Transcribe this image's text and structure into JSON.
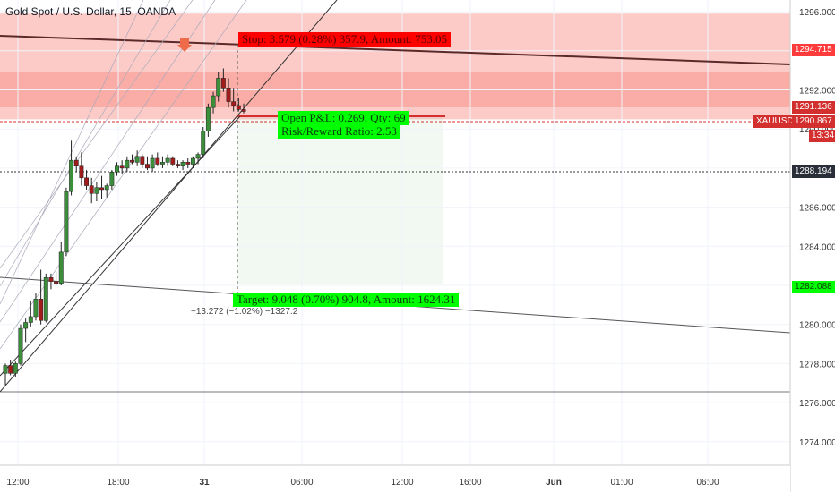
{
  "header": {
    "title": "Gold Spot / U.S. Dollar, 15, OANDA"
  },
  "colors": {
    "up": "#26a69a",
    "down": "#ef5350",
    "candle_up": "#3b8f3b",
    "candle_down": "#a21c1c",
    "stop_zone": "#f44336",
    "target_zone": "#4caf50",
    "target_label": "#00ff00",
    "stop_label": "#ff0000"
  },
  "y_axis": {
    "ticks": [
      "1296.000",
      "1294.000",
      "1292.000",
      "1290.000",
      "1288.000",
      "1286.000",
      "1284.000",
      "1282.000",
      "1280.000",
      "1278.000",
      "1276.000",
      "1274.000"
    ],
    "ylim": [
      1272.8,
      1296.6
    ]
  },
  "x_axis": {
    "ticks": [
      "12:00",
      "18:00",
      "31",
      "06:00",
      "12:00",
      "16:00",
      "Jun",
      "01:00",
      "06:00"
    ]
  },
  "price_tags": {
    "stop": "1294.715",
    "entry": "1291.136",
    "current_symbol": "XAUUSD",
    "current_price": "1290.867",
    "countdown": "13:34",
    "dotted_level": "1288.194",
    "target": "1282.088"
  },
  "position": {
    "stop_label": "Stop: 3.579 (0.28%) 357.9, Amount: 753.05",
    "open_pl_label": "Open P&L: 0.269, Qty: 69",
    "rr_label": "Risk/Reward Ratio: 2.53",
    "target_label": "Target: 9.048 (0.70%) 904.8, Amount: 1624.31",
    "measure_label": "−13.272 (−1.02%) −1327.2"
  },
  "chart_data": {
    "type": "candlestick",
    "symbol": "XAUUSD",
    "ohlc": [
      [
        1277.5,
        1278.0,
        1276.9,
        1277.9
      ],
      [
        1277.9,
        1278.2,
        1277.4,
        1277.5
      ],
      [
        1277.5,
        1278.1,
        1277.3,
        1278.0
      ],
      [
        1278.0,
        1280.0,
        1277.9,
        1279.8
      ],
      [
        1279.8,
        1280.3,
        1279.1,
        1280.1
      ],
      [
        1280.1,
        1281.2,
        1279.9,
        1280.4
      ],
      [
        1280.4,
        1281.6,
        1280.2,
        1281.3
      ],
      [
        1281.3,
        1282.8,
        1280.0,
        1280.2
      ],
      [
        1280.2,
        1282.6,
        1280.1,
        1282.4
      ],
      [
        1282.4,
        1282.6,
        1281.8,
        1282.2
      ],
      [
        1282.2,
        1282.7,
        1282.0,
        1282.1
      ],
      [
        1282.1,
        1284.2,
        1282.0,
        1283.7
      ],
      [
        1283.7,
        1287.0,
        1283.5,
        1286.8
      ],
      [
        1286.8,
        1289.4,
        1286.6,
        1288.4
      ],
      [
        1288.4,
        1288.6,
        1287.8,
        1288.1
      ],
      [
        1288.1,
        1288.8,
        1287.1,
        1287.5
      ],
      [
        1287.5,
        1287.9,
        1286.9,
        1287.1
      ],
      [
        1287.1,
        1287.5,
        1286.2,
        1286.7
      ],
      [
        1286.7,
        1287.3,
        1286.3,
        1287.0
      ],
      [
        1287.0,
        1287.6,
        1286.4,
        1286.9
      ],
      [
        1286.9,
        1287.2,
        1286.5,
        1287.1
      ],
      [
        1287.1,
        1287.9,
        1286.9,
        1287.8
      ],
      [
        1287.8,
        1288.3,
        1287.6,
        1288.1
      ],
      [
        1288.1,
        1288.4,
        1287.7,
        1288.0
      ],
      [
        1288.0,
        1288.6,
        1287.8,
        1288.4
      ],
      [
        1288.4,
        1288.7,
        1288.2,
        1288.3
      ],
      [
        1288.3,
        1288.9,
        1288.1,
        1288.6
      ],
      [
        1288.6,
        1288.7,
        1288.0,
        1288.2
      ],
      [
        1288.2,
        1288.6,
        1287.9,
        1288.0
      ],
      [
        1288.0,
        1288.7,
        1287.8,
        1288.5
      ],
      [
        1288.5,
        1288.8,
        1288.1,
        1288.2
      ],
      [
        1288.2,
        1288.6,
        1288.0,
        1288.3
      ],
      [
        1288.3,
        1288.7,
        1288.1,
        1288.5
      ],
      [
        1288.5,
        1288.6,
        1288.1,
        1288.2
      ],
      [
        1288.2,
        1288.4,
        1288.0,
        1288.1
      ],
      [
        1288.1,
        1288.4,
        1287.9,
        1288.3
      ],
      [
        1288.3,
        1288.5,
        1288.0,
        1288.2
      ],
      [
        1288.2,
        1288.6,
        1288.0,
        1288.5
      ],
      [
        1288.5,
        1288.8,
        1288.2,
        1288.7
      ],
      [
        1288.7,
        1290.1,
        1288.5,
        1289.9
      ],
      [
        1289.9,
        1291.3,
        1289.6,
        1291.1
      ],
      [
        1291.1,
        1291.9,
        1290.8,
        1291.7
      ],
      [
        1291.7,
        1292.9,
        1291.4,
        1292.6
      ],
      [
        1292.6,
        1293.1,
        1291.9,
        1292.1
      ],
      [
        1292.1,
        1292.6,
        1291.1,
        1291.4
      ],
      [
        1291.4,
        1292.1,
        1290.9,
        1291.2
      ],
      [
        1291.2,
        1291.6,
        1290.9,
        1291.0
      ],
      [
        1291.0,
        1291.3,
        1290.8,
        1290.9
      ]
    ]
  }
}
